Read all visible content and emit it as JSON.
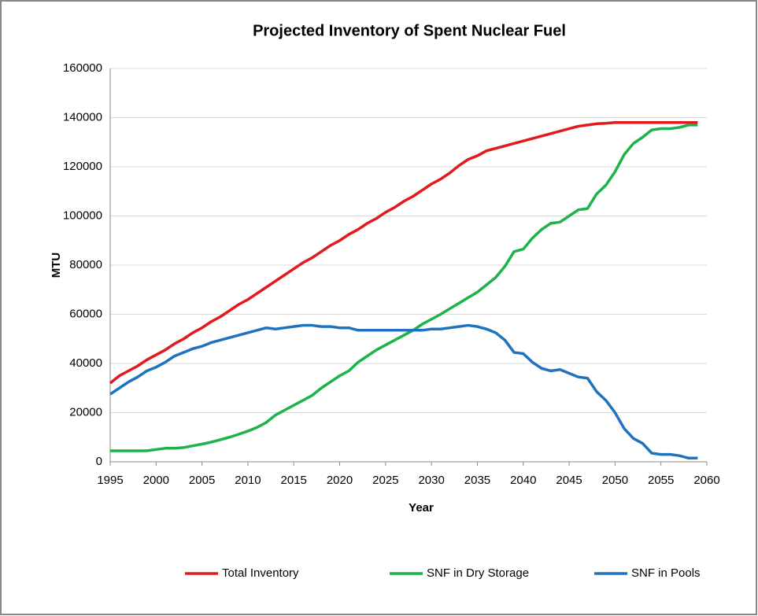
{
  "chart_data": {
    "type": "line",
    "title": "Projected Inventory of Spent Nuclear Fuel",
    "x_label": "Year",
    "y_label": "MTU",
    "x": [
      1995,
      1996,
      1997,
      1998,
      1999,
      2000,
      2001,
      2002,
      2003,
      2004,
      2005,
      2006,
      2007,
      2008,
      2009,
      2010,
      2011,
      2012,
      2013,
      2014,
      2015,
      2016,
      2017,
      2018,
      2019,
      2020,
      2021,
      2022,
      2023,
      2024,
      2025,
      2026,
      2027,
      2028,
      2029,
      2030,
      2031,
      2032,
      2033,
      2034,
      2035,
      2036,
      2037,
      2038,
      2039,
      2040,
      2041,
      2042,
      2043,
      2044,
      2045,
      2046,
      2047,
      2048,
      2049,
      2050,
      2051,
      2052,
      2053,
      2054,
      2055,
      2056,
      2057,
      2058,
      2059
    ],
    "series": [
      {
        "name": "Total Inventory",
        "color": "#e3191c",
        "values": [
          32000,
          35000,
          37000,
          39000,
          41500,
          43500,
          45500,
          48000,
          50000,
          52500,
          54500,
          57000,
          59000,
          61500,
          64000,
          66000,
          68500,
          71000,
          73500,
          76000,
          78500,
          81000,
          83000,
          85500,
          88000,
          90000,
          92500,
          94500,
          97000,
          99000,
          101500,
          103500,
          106000,
          108000,
          110500,
          113000,
          115000,
          117500,
          120500,
          123000,
          124500,
          126500,
          127500,
          128500,
          129500,
          130500,
          131500,
          132500,
          133500,
          134500,
          135500,
          136500,
          137000,
          137500,
          137700,
          138000,
          138000,
          138000,
          138000,
          138000,
          138000,
          138000,
          138000,
          138000,
          138000
        ]
      },
      {
        "name": "SNF in Dry Storage",
        "color": "#1db34a",
        "values": [
          4500,
          4500,
          4500,
          4500,
          4500,
          5000,
          5500,
          5500,
          5800,
          6500,
          7200,
          8000,
          9000,
          10000,
          11200,
          12500,
          14000,
          16000,
          19000,
          21000,
          23000,
          25000,
          27000,
          30000,
          32500,
          35000,
          37000,
          40500,
          43000,
          45500,
          47500,
          49500,
          51500,
          53500,
          56000,
          58000,
          60000,
          62300,
          64500,
          66800,
          69000,
          72000,
          75000,
          79500,
          85500,
          86500,
          91000,
          94500,
          97000,
          97500,
          100000,
          102500,
          103000,
          109000,
          112500,
          118000,
          125000,
          129500,
          132000,
          135000,
          135500,
          135500,
          136000,
          137000,
          137000
        ]
      },
      {
        "name": "SNF in Pools",
        "color": "#1f72bd",
        "values": [
          27500,
          30000,
          32500,
          34500,
          37000,
          38500,
          40500,
          43000,
          44500,
          46000,
          47000,
          48500,
          49500,
          50500,
          51500,
          52500,
          53500,
          54500,
          54000,
          54500,
          55000,
          55500,
          55500,
          55000,
          55000,
          54500,
          54500,
          53500,
          53500,
          53500,
          53500,
          53500,
          53500,
          53500,
          53500,
          54000,
          54000,
          54500,
          55000,
          55500,
          55000,
          54000,
          52500,
          49500,
          44500,
          44000,
          40500,
          38000,
          37000,
          37500,
          36000,
          34500,
          34000,
          28500,
          25000,
          20000,
          13500,
          9500,
          7500,
          3500,
          3000,
          3000,
          2500,
          1500,
          1500
        ]
      }
    ],
    "xlim": [
      1995,
      2060
    ],
    "xticks": [
      1995,
      2000,
      2005,
      2010,
      2015,
      2020,
      2025,
      2030,
      2035,
      2040,
      2045,
      2050,
      2055,
      2060
    ],
    "ylim": [
      0,
      160000
    ],
    "yticks": [
      0,
      20000,
      40000,
      60000,
      80000,
      100000,
      120000,
      140000,
      160000
    ],
    "grid": true,
    "legend": "bottom"
  }
}
